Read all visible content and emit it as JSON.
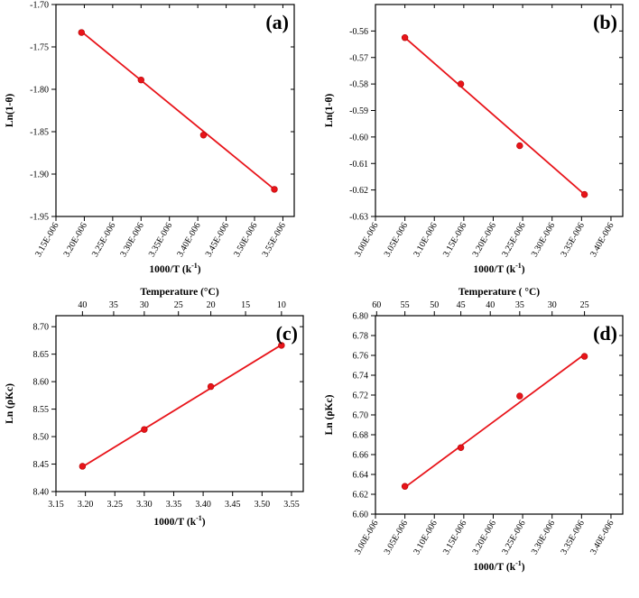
{
  "colors": {
    "series": "#e8141a",
    "marker_edge": "#b00000",
    "axis": "#000000"
  },
  "chart_data": [
    {
      "id": "a",
      "type": "scatter",
      "panel_label": "(a)",
      "xlabel": "1000/T (k",
      "xlabel_sup": "-1",
      "xlabel_end": ")",
      "ylabel": "Ln(1-θ)",
      "xlim": [
        3.15,
        3.57
      ],
      "ylim": [
        -1.95,
        -1.7
      ],
      "xticks": [
        3.15,
        3.2,
        3.25,
        3.3,
        3.35,
        3.4,
        3.45,
        3.5,
        3.55
      ],
      "xtick_labels": [
        "3.15E-006",
        "3.20E-006",
        "3.25E-006",
        "3.30E-006",
        "3.35E-006",
        "3.40E-006",
        "3.45E-006",
        "3.50E-006",
        "3.55E-006"
      ],
      "xtick_rotate": true,
      "yticks": [
        -1.95,
        -1.9,
        -1.85,
        -1.8,
        -1.75,
        -1.7
      ],
      "ytick_labels": [
        "-1.95",
        "-1.90",
        "-1.85",
        "-1.80",
        "-1.75",
        "-1.70"
      ],
      "x": [
        3.195,
        3.3,
        3.41,
        3.535
      ],
      "y": [
        -1.733,
        -1.789,
        -1.854,
        -1.918
      ],
      "fit": {
        "x": [
          3.195,
          3.535
        ],
        "y": [
          -1.732,
          -1.918
        ]
      }
    },
    {
      "id": "b",
      "type": "scatter",
      "panel_label": "(b)",
      "xlabel": "1000/T (k",
      "xlabel_sup": "-1",
      "xlabel_end": ")",
      "ylabel": "Ln(1-θ)",
      "xlim": [
        3.0,
        3.42
      ],
      "ylim": [
        -0.63,
        -0.55
      ],
      "xticks": [
        3.0,
        3.05,
        3.1,
        3.15,
        3.2,
        3.25,
        3.3,
        3.35,
        3.4
      ],
      "xtick_labels": [
        "3.00E-006",
        "3.05E-006",
        "3.10E-006",
        "3.15E-006",
        "3.20E-006",
        "3.25E-006",
        "3.30E-006",
        "3.35E-006",
        "3.40E-006"
      ],
      "xtick_rotate": true,
      "yticks": [
        -0.63,
        -0.62,
        -0.61,
        -0.6,
        -0.59,
        -0.58,
        -0.57,
        -0.56
      ],
      "ytick_labels": [
        "-0.63",
        "-0.62",
        "-0.61",
        "-0.60",
        "-0.59",
        "-0.58",
        "-0.57",
        "-0.56"
      ],
      "x": [
        3.05,
        3.145,
        3.245,
        3.355
      ],
      "y": [
        -0.5625,
        -0.58,
        -0.6033,
        -0.6217
      ],
      "fit": {
        "x": [
          3.05,
          3.355
        ],
        "y": [
          -0.5625,
          -0.6217
        ]
      }
    },
    {
      "id": "c",
      "type": "scatter",
      "panel_label": "(c)",
      "xlabel": "1000/T (k",
      "xlabel_sup": "-1",
      "xlabel_end": ")",
      "ylabel": "Ln (ρKc)",
      "top_axis_title": "Temperature (°C)",
      "xlim": [
        3.15,
        3.57
      ],
      "ylim": [
        8.4,
        8.72
      ],
      "xticks": [
        3.15,
        3.2,
        3.25,
        3.3,
        3.35,
        3.4,
        3.45,
        3.5,
        3.55
      ],
      "xtick_labels": [
        "3.15",
        "3.20",
        "3.25",
        "3.30",
        "3.35",
        "3.40",
        "3.45",
        "3.50",
        "3.55"
      ],
      "xtick_rotate": false,
      "yticks": [
        8.4,
        8.45,
        8.5,
        8.55,
        8.6,
        8.65,
        8.7
      ],
      "ytick_labels": [
        "8.40",
        "8.45",
        "8.50",
        "8.55",
        "8.60",
        "8.65",
        "8.70"
      ],
      "top_ticks": [
        3.195,
        3.248,
        3.3,
        3.358,
        3.413,
        3.472,
        3.533
      ],
      "top_tick_labels": [
        "40",
        "35",
        "30",
        "25",
        "20",
        "15",
        "10"
      ],
      "x": [
        3.195,
        3.3,
        3.413,
        3.533
      ],
      "y": [
        8.446,
        8.513,
        8.591,
        8.666
      ],
      "fit": {
        "x": [
          3.195,
          3.533
        ],
        "y": [
          8.445,
          8.667
        ]
      }
    },
    {
      "id": "d",
      "type": "scatter",
      "panel_label": "(d)",
      "xlabel": "1000/T (k",
      "xlabel_sup": "-1",
      "xlabel_end": ")",
      "ylabel": "Ln (ρKc)",
      "top_axis_title": "Temperature ( °C)",
      "xlim": [
        3.0,
        3.42
      ],
      "ylim": [
        6.6,
        6.8
      ],
      "xticks": [
        3.0,
        3.05,
        3.1,
        3.15,
        3.2,
        3.25,
        3.3,
        3.35,
        3.4
      ],
      "xtick_labels": [
        "3.00E-006",
        "3.05E-006",
        "3.10E-006",
        "3.15E-006",
        "3.20E-006",
        "3.25E-006",
        "3.30E-006",
        "3.35E-006",
        "3.40E-006"
      ],
      "xtick_rotate": true,
      "yticks": [
        6.6,
        6.62,
        6.64,
        6.66,
        6.68,
        6.7,
        6.72,
        6.74,
        6.76,
        6.78,
        6.8
      ],
      "ytick_labels": [
        "6.60",
        "6.62",
        "6.64",
        "6.66",
        "6.68",
        "6.70",
        "6.72",
        "6.74",
        "6.76",
        "6.78",
        "6.80"
      ],
      "top_ticks": [
        3.002,
        3.05,
        3.1,
        3.145,
        3.195,
        3.245,
        3.3,
        3.355
      ],
      "top_tick_labels": [
        "60",
        "55",
        "50",
        "45",
        "40",
        "35",
        "30",
        "25"
      ],
      "x": [
        3.05,
        3.145,
        3.245,
        3.355
      ],
      "y": [
        6.628,
        6.667,
        6.719,
        6.759
      ],
      "fit": {
        "x": [
          3.05,
          3.355
        ],
        "y": [
          6.627,
          6.761
        ]
      }
    }
  ]
}
